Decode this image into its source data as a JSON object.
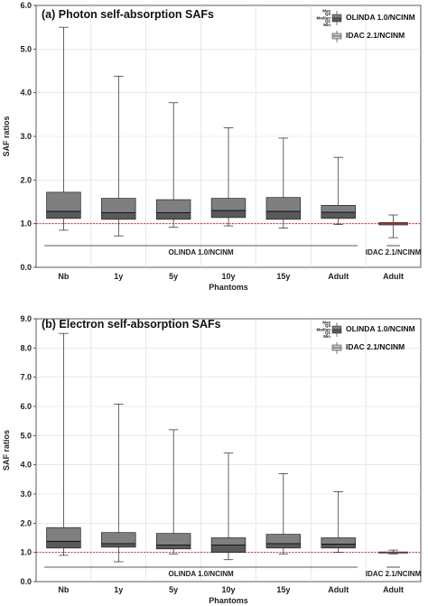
{
  "chart_data": [
    {
      "type": "boxplot",
      "title": "(a) Photon self-absorption SAFs",
      "xlabel": "Phantoms",
      "ylabel": "SAF ratios",
      "ylim": [
        0,
        6.0
      ],
      "yticks": [
        "0.0",
        "1.0",
        "2.0",
        "3.0",
        "4.0",
        "5.0",
        "6.0"
      ],
      "grid": true,
      "reference_line": 1.0,
      "categories": [
        "Nb",
        "1y",
        "5y",
        "10y",
        "15y",
        "Adult",
        "Adult"
      ],
      "groups": [
        {
          "label": "OLINDA 1.0/NCINM",
          "categories": [
            0,
            1,
            2,
            3,
            4,
            5
          ]
        },
        {
          "label": "IDAC 2.1/NCINM",
          "categories": [
            6
          ]
        }
      ],
      "series": [
        {
          "name": "OLINDA 1.0/NCINM",
          "boxes": [
            {
              "min": 0.85,
              "q1": 1.12,
              "median": 1.28,
              "q3": 1.72,
              "max": 5.5
            },
            {
              "min": 0.72,
              "q1": 1.1,
              "median": 1.25,
              "q3": 1.58,
              "max": 4.38
            },
            {
              "min": 0.92,
              "q1": 1.1,
              "median": 1.25,
              "q3": 1.55,
              "max": 3.77
            },
            {
              "min": 0.95,
              "q1": 1.14,
              "median": 1.3,
              "q3": 1.58,
              "max": 3.2
            },
            {
              "min": 0.9,
              "q1": 1.1,
              "median": 1.28,
              "q3": 1.6,
              "max": 2.96
            },
            {
              "min": 0.98,
              "q1": 1.12,
              "median": 1.26,
              "q3": 1.42,
              "max": 2.52
            }
          ]
        },
        {
          "name": "IDAC 2.1/NCINM",
          "boxes": [
            {
              "min": 0.68,
              "q1": 0.97,
              "median": 1.0,
              "q3": 1.03,
              "max": 1.2
            }
          ]
        }
      ],
      "legend": {
        "placement": "top-right",
        "entries": [
          "OLINDA 1.0/NCINM",
          "IDAC 2.1/NCINM"
        ],
        "stat_labels": [
          "Max",
          "Q3",
          "Median",
          "Q1",
          "Min"
        ]
      }
    },
    {
      "type": "boxplot",
      "title": "(b) Electron self-absorption SAFs",
      "xlabel": "Phantoms",
      "ylabel": "SAF ratios",
      "ylim": [
        0,
        9.0
      ],
      "yticks": [
        "0.0",
        "1.0",
        "2.0",
        "3.0",
        "4.0",
        "5.0",
        "6.0",
        "7.0",
        "8.0",
        "9.0"
      ],
      "grid": true,
      "reference_line": 1.0,
      "categories": [
        "Nb",
        "1y",
        "5y",
        "10y",
        "15y",
        "Adult",
        "Adult"
      ],
      "groups": [
        {
          "label": "OLINDA 1.0/NCINM",
          "categories": [
            0,
            1,
            2,
            3,
            4,
            5
          ]
        },
        {
          "label": "IDAC 2.1/NCINM",
          "categories": [
            6
          ]
        }
      ],
      "series": [
        {
          "name": "OLINDA 1.0/NCINM",
          "boxes": [
            {
              "min": 0.9,
              "q1": 1.15,
              "median": 1.38,
              "q3": 1.85,
              "max": 8.5
            },
            {
              "min": 0.68,
              "q1": 1.18,
              "median": 1.3,
              "q3": 1.68,
              "max": 6.08
            },
            {
              "min": 0.95,
              "q1": 1.12,
              "median": 1.25,
              "q3": 1.65,
              "max": 5.2
            },
            {
              "min": 0.75,
              "q1": 1.0,
              "median": 1.25,
              "q3": 1.5,
              "max": 4.4
            },
            {
              "min": 0.95,
              "q1": 1.15,
              "median": 1.3,
              "q3": 1.62,
              "max": 3.7
            },
            {
              "min": 1.0,
              "q1": 1.15,
              "median": 1.28,
              "q3": 1.5,
              "max": 3.08
            }
          ]
        },
        {
          "name": "IDAC 2.1/NCINM",
          "boxes": [
            {
              "min": 0.95,
              "q1": 0.98,
              "median": 1.0,
              "q3": 1.02,
              "max": 1.08
            }
          ]
        }
      ],
      "legend": {
        "placement": "top-right",
        "entries": [
          "OLINDA 1.0/NCINM",
          "IDAC 2.1/NCINM"
        ],
        "stat_labels": [
          "Max",
          "Q3",
          "Median",
          "Q1",
          "Min"
        ]
      }
    }
  ],
  "colors": {
    "olinda_box": "#7f7f7f",
    "olinda_lower_box": "#595959",
    "idac_box": "#c8c8c8",
    "idac_bar": "#8b3a3a",
    "reference_line": "#d42a2a",
    "grid": "#d9d9d9"
  }
}
